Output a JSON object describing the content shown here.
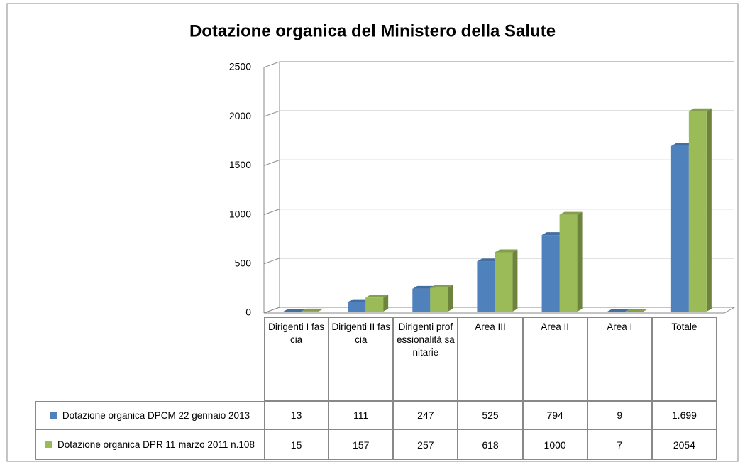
{
  "chart_data": {
    "type": "bar3d",
    "title": "Dotazione organica del Ministero della Salute",
    "categories": [
      "Dirigenti I fascia",
      "Dirigenti II fascia",
      "Dirigenti professionalità sanitarie",
      "Area III",
      "Area II",
      "Area I",
      "Totale"
    ],
    "series": [
      {
        "name": "Dotazione organica DPCM 22 gennaio 2013",
        "color": "#4f81bd",
        "values": [
          13,
          111,
          247,
          525,
          794,
          9,
          1699
        ],
        "value_labels": [
          "13",
          "111",
          "247",
          "525",
          "794",
          "9",
          "1.699"
        ]
      },
      {
        "name": "Dotazione organica DPR 11 marzo 2011 n.108",
        "color": "#9bbb59",
        "values": [
          15,
          157,
          257,
          618,
          1000,
          7,
          2054
        ]
      }
    ],
    "ylim": [
      0,
      2500
    ],
    "yticks": [
      0,
      500,
      1000,
      1500,
      2000,
      2500
    ],
    "grid": true
  }
}
